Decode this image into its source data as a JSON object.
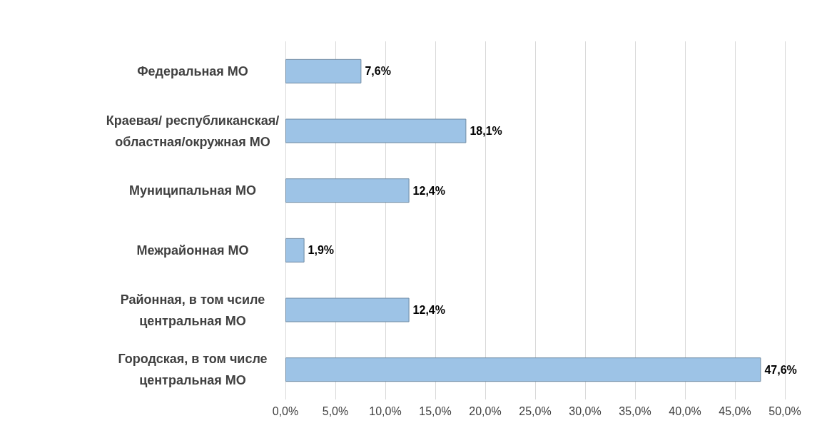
{
  "chart_data": {
    "type": "bar",
    "orientation": "horizontal",
    "categories": [
      "Федеральная МО",
      "Краевая/ республиканская/\nобластная/окружная МО",
      "Муниципальная МО",
      "Межрайонная МО",
      "Районная, в том чсиле\nцентральная МО",
      "Городская, в том числе\nцентральная МО"
    ],
    "values": [
      7.6,
      18.1,
      12.4,
      1.9,
      12.4,
      47.6
    ],
    "value_labels": [
      "7,6%",
      "18,1%",
      "12,4%",
      "1,9%",
      "12,4%",
      "47,6%"
    ],
    "color": "#9dc3e6",
    "xlim": [
      0,
      50
    ],
    "xticks": [
      {
        "value": 0,
        "label": "0,0%"
      },
      {
        "value": 5,
        "label": "5,0%"
      },
      {
        "value": 10,
        "label": "10,0%"
      },
      {
        "value": 15,
        "label": "15,0%"
      },
      {
        "value": 20,
        "label": "20,0%"
      },
      {
        "value": 25,
        "label": "25,0%"
      },
      {
        "value": 30,
        "label": "30,0%"
      },
      {
        "value": 35,
        "label": "35,0%"
      },
      {
        "value": 40,
        "label": "40,0%"
      },
      {
        "value": 45,
        "label": "45,0%"
      },
      {
        "value": 50,
        "label": "50,0%"
      }
    ],
    "grid": "x"
  }
}
